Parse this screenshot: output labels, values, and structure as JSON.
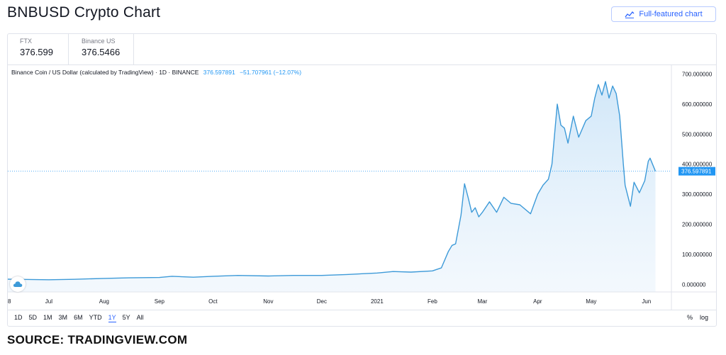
{
  "page_title": "BNBUSD Crypto Chart",
  "full_button_label": "Full-featured chart",
  "quotes": [
    {
      "exchange": "FTX",
      "price": "376.599"
    },
    {
      "exchange": "Binance US",
      "price": "376.5466"
    }
  ],
  "legend": {
    "name": "Binance Coin / US Dollar (calculated by TradingView) · 1D · BINANCE",
    "value": "376.597891",
    "change": "−51.707961 (−12.07%)"
  },
  "ranges": [
    "1D",
    "5D",
    "1M",
    "3M",
    "6M",
    "YTD",
    "1Y",
    "5Y",
    "All"
  ],
  "active_range": "1Y",
  "scale_options": [
    "%",
    "log"
  ],
  "source": "SOURCE: TRADINGVIEW.COM",
  "colors": {
    "line": "#3d9ad8",
    "fill_top": "#cfe6f8",
    "accent": "#2962ff",
    "price_tag": "#2196f3"
  },
  "chart_data": {
    "type": "area",
    "x_tick_labels": [
      "8",
      "Jul",
      "Aug",
      "Sep",
      "Oct",
      "Nov",
      "Dec",
      "2021",
      "Feb",
      "Mar",
      "Apr",
      "May",
      "Jun"
    ],
    "x_ticks": [
      "2020-06-08",
      "2020-07-01",
      "2020-08-01",
      "2020-09-01",
      "2020-10-01",
      "2020-11-01",
      "2020-12-01",
      "2021-01-01",
      "2021-02-01",
      "2021-03-01",
      "2021-04-01",
      "2021-05-01",
      "2021-06-01"
    ],
    "y_ticks": [
      "0.000000",
      "100.000000",
      "200.000000",
      "300.000000",
      "400.000000",
      "500.000000",
      "600.000000",
      "700.000000"
    ],
    "ylim": [
      -25,
      720
    ],
    "xlim": [
      "2020-06-08",
      "2021-06-09"
    ],
    "last_price_label": "376.597891",
    "last_price": 376.6,
    "points": [
      [
        "2020-06-08",
        17.5
      ],
      [
        "2020-06-20",
        16.5
      ],
      [
        "2020-07-01",
        15.5
      ],
      [
        "2020-07-15",
        17
      ],
      [
        "2020-08-01",
        20
      ],
      [
        "2020-08-15",
        22
      ],
      [
        "2020-09-01",
        23
      ],
      [
        "2020-09-08",
        27
      ],
      [
        "2020-09-20",
        24
      ],
      [
        "2020-10-01",
        27
      ],
      [
        "2020-10-15",
        30
      ],
      [
        "2020-11-01",
        28
      ],
      [
        "2020-11-15",
        30
      ],
      [
        "2020-12-01",
        30
      ],
      [
        "2020-12-15",
        33
      ],
      [
        "2021-01-01",
        38
      ],
      [
        "2021-01-10",
        43
      ],
      [
        "2021-01-20",
        41
      ],
      [
        "2021-02-01",
        45
      ],
      [
        "2021-02-06",
        55
      ],
      [
        "2021-02-10",
        110
      ],
      [
        "2021-02-12",
        130
      ],
      [
        "2021-02-14",
        135
      ],
      [
        "2021-02-17",
        230
      ],
      [
        "2021-02-19",
        335
      ],
      [
        "2021-02-21",
        290
      ],
      [
        "2021-02-23",
        240
      ],
      [
        "2021-02-25",
        255
      ],
      [
        "2021-02-27",
        225
      ],
      [
        "2021-03-01",
        240
      ],
      [
        "2021-03-05",
        275
      ],
      [
        "2021-03-09",
        240
      ],
      [
        "2021-03-13",
        290
      ],
      [
        "2021-03-17",
        270
      ],
      [
        "2021-03-22",
        265
      ],
      [
        "2021-03-28",
        235
      ],
      [
        "2021-04-01",
        300
      ],
      [
        "2021-04-04",
        330
      ],
      [
        "2021-04-07",
        350
      ],
      [
        "2021-04-09",
        400
      ],
      [
        "2021-04-12",
        600
      ],
      [
        "2021-04-14",
        530
      ],
      [
        "2021-04-16",
        520
      ],
      [
        "2021-04-18",
        470
      ],
      [
        "2021-04-21",
        560
      ],
      [
        "2021-04-24",
        490
      ],
      [
        "2021-04-28",
        545
      ],
      [
        "2021-05-01",
        560
      ],
      [
        "2021-05-03",
        620
      ],
      [
        "2021-05-05",
        665
      ],
      [
        "2021-05-07",
        630
      ],
      [
        "2021-05-09",
        675
      ],
      [
        "2021-05-11",
        620
      ],
      [
        "2021-05-13",
        660
      ],
      [
        "2021-05-15",
        635
      ],
      [
        "2021-05-17",
        560
      ],
      [
        "2021-05-19",
        400
      ],
      [
        "2021-05-20",
        330
      ],
      [
        "2021-05-23",
        260
      ],
      [
        "2021-05-25",
        340
      ],
      [
        "2021-05-28",
        305
      ],
      [
        "2021-05-31",
        345
      ],
      [
        "2021-06-02",
        410
      ],
      [
        "2021-06-03",
        420
      ],
      [
        "2021-06-06",
        376.6
      ]
    ]
  }
}
